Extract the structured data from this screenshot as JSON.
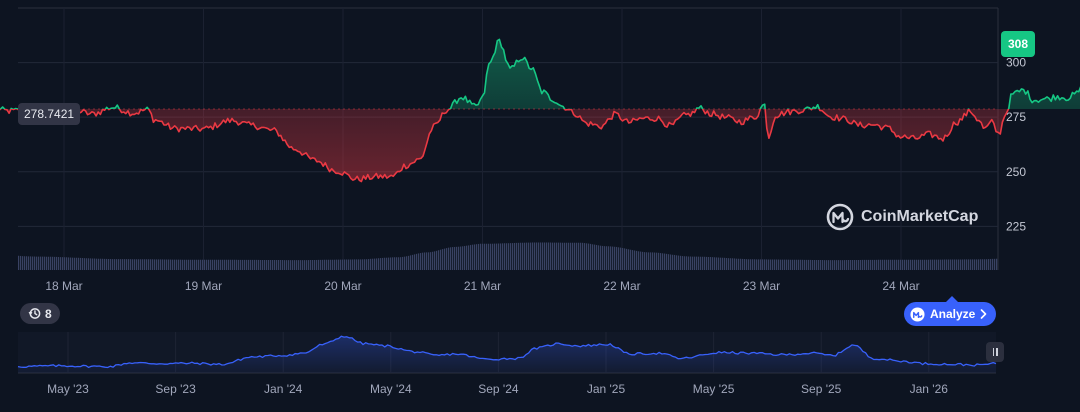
{
  "chart_data": {
    "type": "line",
    "series_name": "",
    "x_tick_labels": [
      "18 Mar",
      "19 Mar",
      "20 Mar",
      "21 Mar",
      "22 Mar",
      "23 Mar",
      "24 Mar"
    ],
    "y_tick_labels": [
      "225",
      "250",
      "275",
      "300"
    ],
    "ylim": [
      205,
      325
    ],
    "reference_value": 278.7421,
    "reference_label": "278.7421",
    "current_value": 308,
    "current_label": "308",
    "up_color": "#16c784",
    "down_color": "#ea3943",
    "keypoints": [
      [
        0,
        278.7
      ],
      [
        0.11,
        277.8
      ],
      [
        0.22,
        278.3
      ],
      [
        0.34,
        276.2
      ],
      [
        0.45,
        278.1
      ],
      [
        0.52,
        281.6
      ],
      [
        0.6,
        277.7
      ],
      [
        0.7,
        276.4
      ],
      [
        0.85,
        279.5
      ],
      [
        1.0,
        276.9
      ],
      [
        1.1,
        278.5
      ],
      [
        1.15,
        273.7
      ],
      [
        1.3,
        269.8
      ],
      [
        1.5,
        269.6
      ],
      [
        1.7,
        273.5
      ],
      [
        1.85,
        271.2
      ],
      [
        2.0,
        268.9
      ],
      [
        2.15,
        260.5
      ],
      [
        2.3,
        255.2
      ],
      [
        2.45,
        250.5
      ],
      [
        2.6,
        246.6
      ],
      [
        2.75,
        247.8
      ],
      [
        2.85,
        247.7
      ],
      [
        2.95,
        252.9
      ],
      [
        3.05,
        255.6
      ],
      [
        3.15,
        270.5
      ],
      [
        3.25,
        278.6
      ],
      [
        3.35,
        284.2
      ],
      [
        3.45,
        279.6
      ],
      [
        3.5,
        283.5
      ],
      [
        3.55,
        299.5
      ],
      [
        3.62,
        309.9
      ],
      [
        3.7,
        296.8
      ],
      [
        3.78,
        302.4
      ],
      [
        3.85,
        297.4
      ],
      [
        3.93,
        286.6
      ],
      [
        4.0,
        283.3
      ],
      [
        4.08,
        279.9
      ],
      [
        4.15,
        277.1
      ],
      [
        4.25,
        272.1
      ],
      [
        4.35,
        270.8
      ],
      [
        4.45,
        276.2
      ],
      [
        4.55,
        272.6
      ],
      [
        4.65,
        274.4
      ],
      [
        4.75,
        274.5
      ],
      [
        4.85,
        271.0
      ],
      [
        4.95,
        275.7
      ],
      [
        5.0,
        276.6
      ],
      [
        5.05,
        279.2
      ],
      [
        5.15,
        276.4
      ],
      [
        5.25,
        274.7
      ],
      [
        5.35,
        273.0
      ],
      [
        5.45,
        274.9
      ],
      [
        5.52,
        280.8
      ],
      [
        5.55,
        265.9
      ],
      [
        5.6,
        275.9
      ],
      [
        5.7,
        277.5
      ],
      [
        5.8,
        278.3
      ],
      [
        5.9,
        279.9
      ],
      [
        6.0,
        275.2
      ],
      [
        6.1,
        274.1
      ],
      [
        6.2,
        271.3
      ],
      [
        6.3,
        271.5
      ],
      [
        6.4,
        270.1
      ],
      [
        6.5,
        266.0
      ],
      [
        6.6,
        265.2
      ],
      [
        6.7,
        267.1
      ],
      [
        6.8,
        265.2
      ],
      [
        6.9,
        272.8
      ],
      [
        7.0,
        277.7
      ],
      [
        7.05,
        274.2
      ],
      [
        7.1,
        269.5
      ],
      [
        7.15,
        272.6
      ],
      [
        7.2,
        267.2
      ],
      [
        7.25,
        276.6
      ],
      [
        7.3,
        285.6
      ],
      [
        7.38,
        287.4
      ],
      [
        7.45,
        282.9
      ],
      [
        7.55,
        283.4
      ],
      [
        7.62,
        284.5
      ],
      [
        7.7,
        283.9
      ],
      [
        7.75,
        285.5
      ],
      [
        7.8,
        288.4
      ],
      [
        7.85,
        287.4
      ],
      [
        7.9,
        289.6
      ],
      [
        7.95,
        295.7
      ],
      [
        8.0,
        302.2
      ],
      [
        8.05,
        303.5
      ],
      [
        8.1,
        311.9
      ],
      [
        8.15,
        307.3
      ],
      [
        8.2,
        310.5
      ],
      [
        8.25,
        307.6
      ],
      [
        8.28,
        305.5
      ],
      [
        8.3,
        314.9
      ],
      [
        8.35,
        319.4
      ],
      [
        8.4,
        315.5
      ],
      [
        8.45,
        311.1
      ],
      [
        8.5,
        306.5
      ],
      [
        8.52,
        308.0
      ]
    ],
    "volume_profile": [
      [
        0,
        0.48
      ],
      [
        0.3,
        0.42
      ],
      [
        0.9,
        0.34
      ],
      [
        1.5,
        0.32
      ],
      [
        2.2,
        0.31
      ],
      [
        2.6,
        0.33
      ],
      [
        2.9,
        0.4
      ],
      [
        3.1,
        0.55
      ],
      [
        3.3,
        0.72
      ],
      [
        3.5,
        0.82
      ],
      [
        3.9,
        0.86
      ],
      [
        4.2,
        0.85
      ],
      [
        4.4,
        0.74
      ],
      [
        4.7,
        0.55
      ],
      [
        5.0,
        0.42
      ],
      [
        5.5,
        0.33
      ],
      [
        6.0,
        0.31
      ],
      [
        6.5,
        0.32
      ],
      [
        7.0,
        0.33
      ],
      [
        7.3,
        0.36
      ],
      [
        7.6,
        0.46
      ],
      [
        8.0,
        0.56
      ],
      [
        8.3,
        0.66
      ],
      [
        8.52,
        0.7
      ]
    ],
    "navigator": {
      "x_tick_labels": [
        "May '23",
        "Sep '23",
        "Jan '24",
        "May '24",
        "Sep '24",
        "Jan '25",
        "May '25",
        "Sep '25",
        "Jan '26"
      ],
      "line_color": "#3861fb",
      "profile": [
        [
          0,
          0.12
        ],
        [
          0.4,
          0.14
        ],
        [
          0.9,
          0.12
        ],
        [
          1.1,
          0.22
        ],
        [
          1.4,
          0.2
        ],
        [
          1.7,
          0.21
        ],
        [
          2.0,
          0.18
        ],
        [
          2.3,
          0.38
        ],
        [
          2.6,
          0.42
        ],
        [
          2.8,
          0.48
        ],
        [
          3.0,
          0.72
        ],
        [
          3.2,
          0.94
        ],
        [
          3.4,
          0.74
        ],
        [
          3.6,
          0.68
        ],
        [
          3.9,
          0.52
        ],
        [
          4.1,
          0.42
        ],
        [
          4.3,
          0.46
        ],
        [
          4.6,
          0.32
        ],
        [
          4.9,
          0.34
        ],
        [
          5.1,
          0.62
        ],
        [
          5.3,
          0.74
        ],
        [
          5.5,
          0.68
        ],
        [
          5.8,
          0.72
        ],
        [
          6.0,
          0.46
        ],
        [
          6.3,
          0.48
        ],
        [
          6.5,
          0.34
        ],
        [
          6.9,
          0.5
        ],
        [
          7.2,
          0.48
        ],
        [
          7.5,
          0.44
        ],
        [
          7.8,
          0.48
        ],
        [
          8.0,
          0.42
        ],
        [
          8.2,
          0.7
        ],
        [
          8.4,
          0.34
        ],
        [
          8.7,
          0.26
        ],
        [
          8.9,
          0.2
        ],
        [
          9.2,
          0.18
        ],
        [
          9.4,
          0.16
        ],
        [
          9.6,
          0.2
        ]
      ]
    }
  },
  "history_badge": {
    "count": "8"
  },
  "analyze_button": {
    "label": "Analyze"
  },
  "watermark": {
    "label": "CoinMarketCap"
  }
}
